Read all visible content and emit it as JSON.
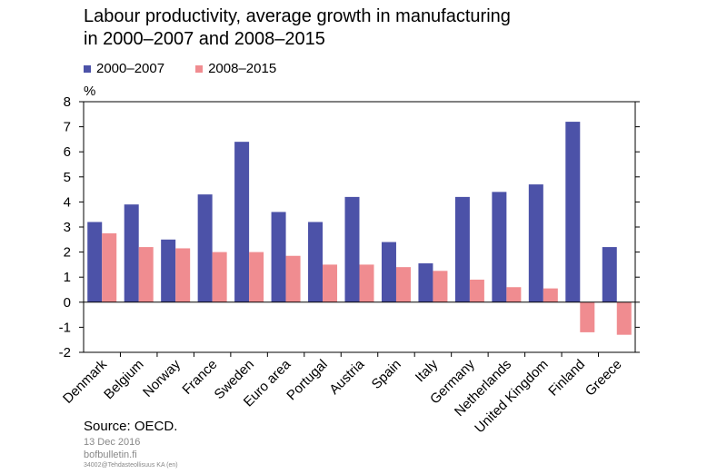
{
  "title_line1": "Labour productivity, average growth in manufacturing",
  "title_line2": "in 2000–2007 and 2008–2015",
  "unit_label": "%",
  "source": "Source: OECD.",
  "date": "13 Dec 2016",
  "site": "bofbulletin.fi",
  "code": "34002@Tehdasteollisuus KA (en)",
  "colors": {
    "series1": "#4c52a8",
    "series2": "#f08c90",
    "grid": "#000000"
  },
  "chart_data": {
    "type": "bar",
    "title": "Labour productivity, average growth in manufacturing in 2000–2007 and 2008–2015",
    "ylabel": "%",
    "ylim": [
      -2,
      8
    ],
    "yticks": [
      8,
      7,
      6,
      5,
      4,
      3,
      2,
      1,
      0,
      -1,
      -2
    ],
    "grid": false,
    "legend": "top-left",
    "categories": [
      "Denmark",
      "Belgium",
      "Norway",
      "France",
      "Sweden",
      "Euro area",
      "Portugal",
      "Austria",
      "Spain",
      "Italy",
      "Germany",
      "Netherlands",
      "United Kingdom",
      "Finland",
      "Greece"
    ],
    "series": [
      {
        "name": "2000–2007",
        "values": [
          3.2,
          3.9,
          2.5,
          4.3,
          6.4,
          3.6,
          3.2,
          4.2,
          2.4,
          1.55,
          4.2,
          4.4,
          4.7,
          7.2,
          2.2
        ]
      },
      {
        "name": "2008–2015",
        "values": [
          2.75,
          2.2,
          2.15,
          2.0,
          2.0,
          1.85,
          1.5,
          1.5,
          1.4,
          1.25,
          0.9,
          0.6,
          0.55,
          -1.2,
          -1.3
        ]
      }
    ]
  }
}
